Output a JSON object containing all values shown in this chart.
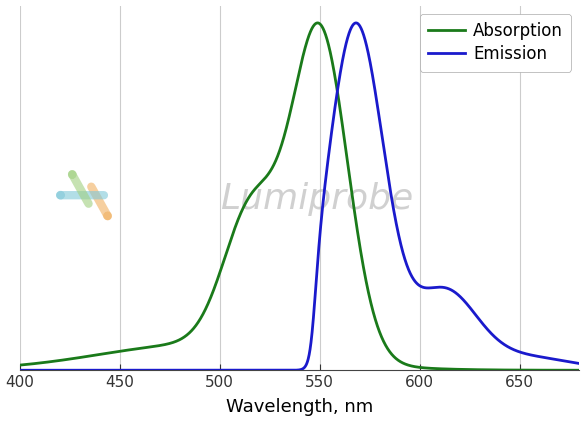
{
  "title": "",
  "xlabel": "Wavelength, nm",
  "ylabel": "",
  "xlim": [
    400,
    680
  ],
  "ylim": [
    0,
    1.05
  ],
  "xticks": [
    400,
    450,
    500,
    550,
    600,
    650
  ],
  "absorption_color": "#1a7a1a",
  "emission_color": "#1a1acc",
  "absorption_lw": 2.0,
  "emission_lw": 2.0,
  "legend_labels": [
    "Absorption",
    "Emission"
  ],
  "background_color": "#ffffff",
  "grid_color": "#cccccc"
}
